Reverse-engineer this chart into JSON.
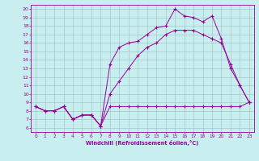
{
  "xlabel": "Windchill (Refroidissement éolien,°C)",
  "bg_color": "#c8eef0",
  "line_color": "#990099",
  "grid_color": "#9bbfbf",
  "xlim": [
    -0.5,
    23.5
  ],
  "ylim": [
    5.5,
    20.5
  ],
  "xticks": [
    0,
    1,
    2,
    3,
    4,
    5,
    6,
    7,
    8,
    9,
    10,
    11,
    12,
    13,
    14,
    15,
    16,
    17,
    18,
    19,
    20,
    21,
    22,
    23
  ],
  "yticks": [
    6,
    7,
    8,
    9,
    10,
    11,
    12,
    13,
    14,
    15,
    16,
    17,
    18,
    19,
    20
  ],
  "line1_x": [
    0,
    1,
    2,
    3,
    4,
    5,
    6,
    7,
    8,
    9,
    10,
    11,
    12,
    13,
    14,
    15,
    16,
    17,
    18,
    19,
    20,
    21,
    22,
    23
  ],
  "line1_y": [
    8.5,
    8.0,
    8.0,
    8.5,
    7.0,
    7.5,
    7.5,
    6.2,
    8.5,
    8.5,
    8.5,
    8.5,
    8.5,
    8.5,
    8.5,
    8.5,
    8.5,
    8.5,
    8.5,
    8.5,
    8.5,
    8.5,
    8.5,
    9.0
  ],
  "line2_x": [
    0,
    1,
    2,
    3,
    4,
    5,
    6,
    7,
    8,
    9,
    10,
    11,
    12,
    13,
    14,
    15,
    16,
    17,
    18,
    19,
    20,
    21,
    22,
    23
  ],
  "line2_y": [
    8.5,
    8.0,
    8.0,
    8.5,
    7.0,
    7.5,
    7.5,
    6.2,
    10.0,
    11.5,
    13.0,
    14.5,
    15.5,
    16.0,
    17.0,
    17.5,
    17.5,
    17.5,
    17.0,
    16.5,
    16.0,
    13.5,
    11.0,
    9.0
  ],
  "line3_x": [
    0,
    1,
    2,
    3,
    4,
    5,
    6,
    7,
    8,
    9,
    10,
    11,
    12,
    13,
    14,
    15,
    16,
    17,
    18,
    19,
    20,
    21,
    22,
    23
  ],
  "line3_y": [
    8.5,
    8.0,
    8.0,
    8.5,
    7.0,
    7.5,
    7.5,
    6.2,
    13.5,
    15.5,
    16.0,
    16.2,
    17.0,
    17.8,
    18.0,
    20.0,
    19.2,
    19.0,
    18.5,
    19.2,
    16.5,
    13.0,
    11.0,
    9.0
  ]
}
